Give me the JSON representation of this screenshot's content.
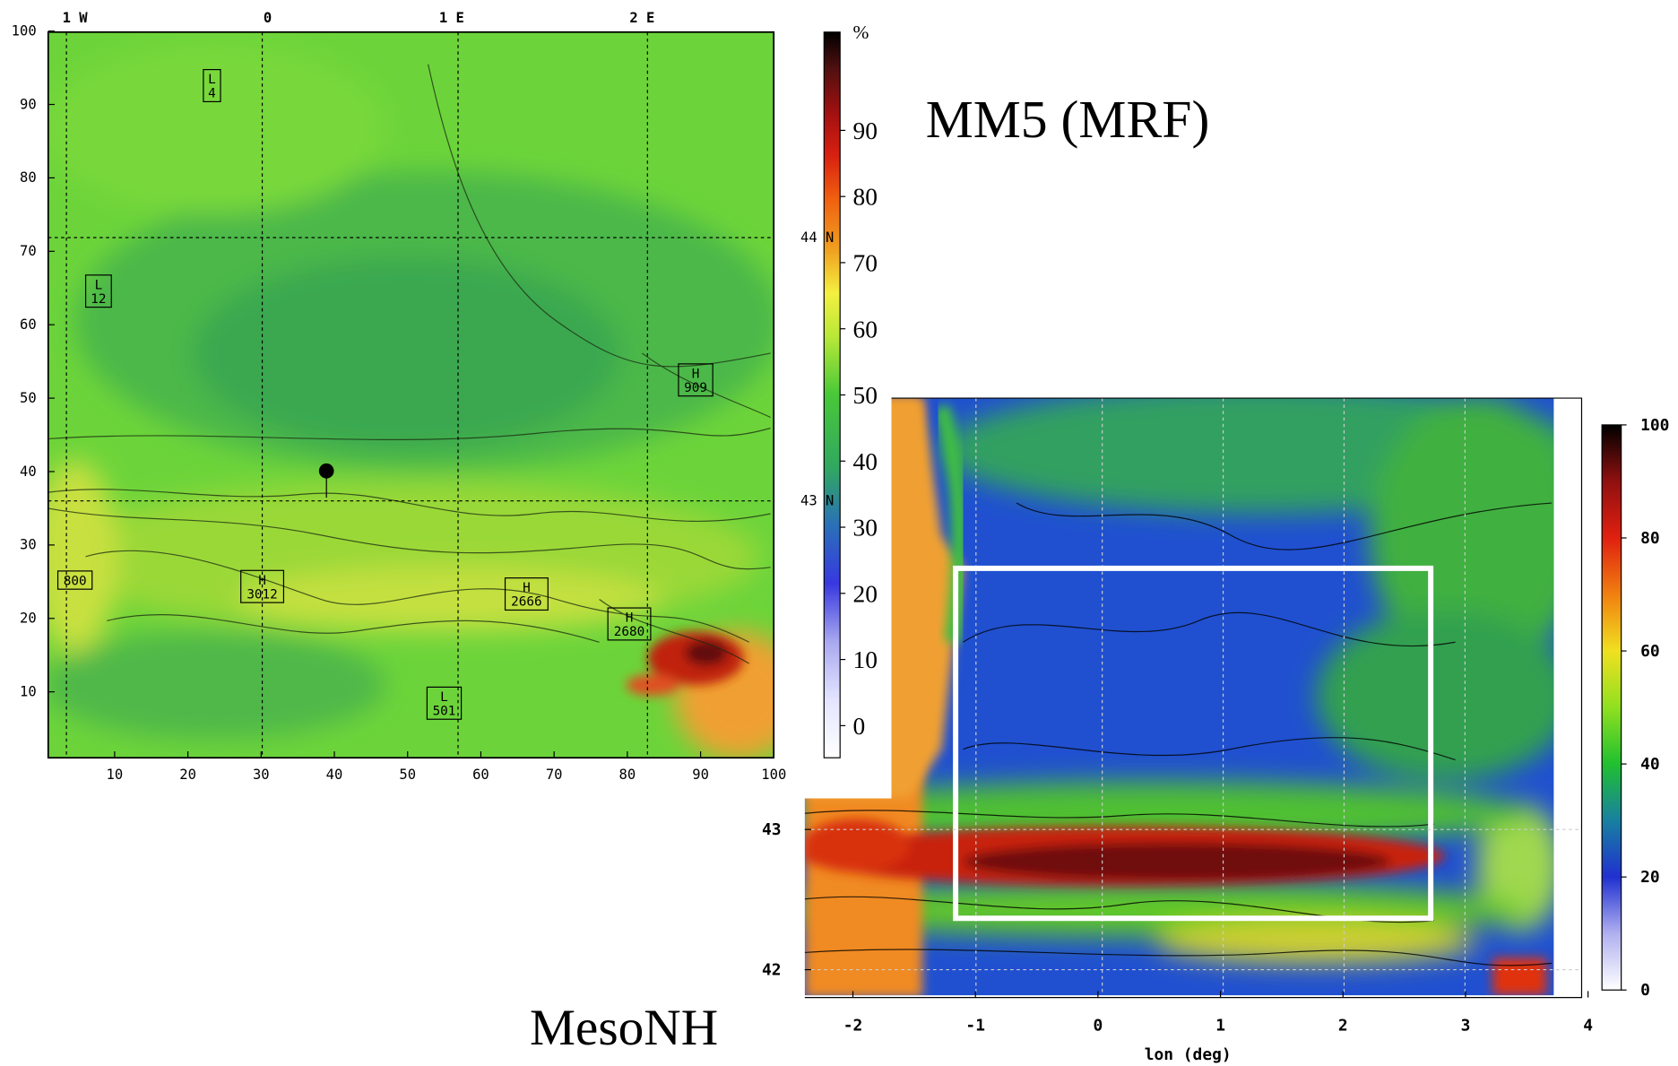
{
  "title_left": "MM5 (MRF)",
  "title_right": "MesoNH",
  "left_panel": {
    "xticks": [
      10,
      20,
      30,
      40,
      50,
      60,
      70,
      80,
      90,
      100
    ],
    "yticks": [
      10,
      20,
      30,
      40,
      50,
      60,
      70,
      80,
      90,
      100
    ],
    "lon_labels": [
      "1 W",
      "0",
      "1 E",
      "2 E"
    ],
    "lat_labels": [
      "44 N",
      "43 N"
    ],
    "boxes": [
      {
        "lines": [
          "L",
          "4"
        ]
      },
      {
        "lines": [
          "L",
          "12"
        ]
      },
      {
        "lines": [
          "H",
          "909"
        ]
      },
      {
        "lines": [
          "800"
        ]
      },
      {
        "lines": [
          "H",
          "3012"
        ]
      },
      {
        "lines": [
          "H",
          "2666"
        ]
      },
      {
        "lines": [
          "H",
          "2680"
        ]
      },
      {
        "lines": [
          "L",
          "501"
        ]
      }
    ],
    "colorbar": {
      "unit": "%",
      "ticks": [
        0,
        10,
        20,
        30,
        40,
        50,
        60,
        70,
        80,
        90
      ]
    }
  },
  "right_panel": {
    "xticks": [
      -2,
      -1,
      0,
      1,
      2,
      3,
      4
    ],
    "yticks": [
      42,
      43
    ],
    "xlabel": "lon (deg)",
    "colorbar": {
      "ticks": [
        0,
        20,
        40,
        60,
        80,
        100
      ]
    }
  }
}
